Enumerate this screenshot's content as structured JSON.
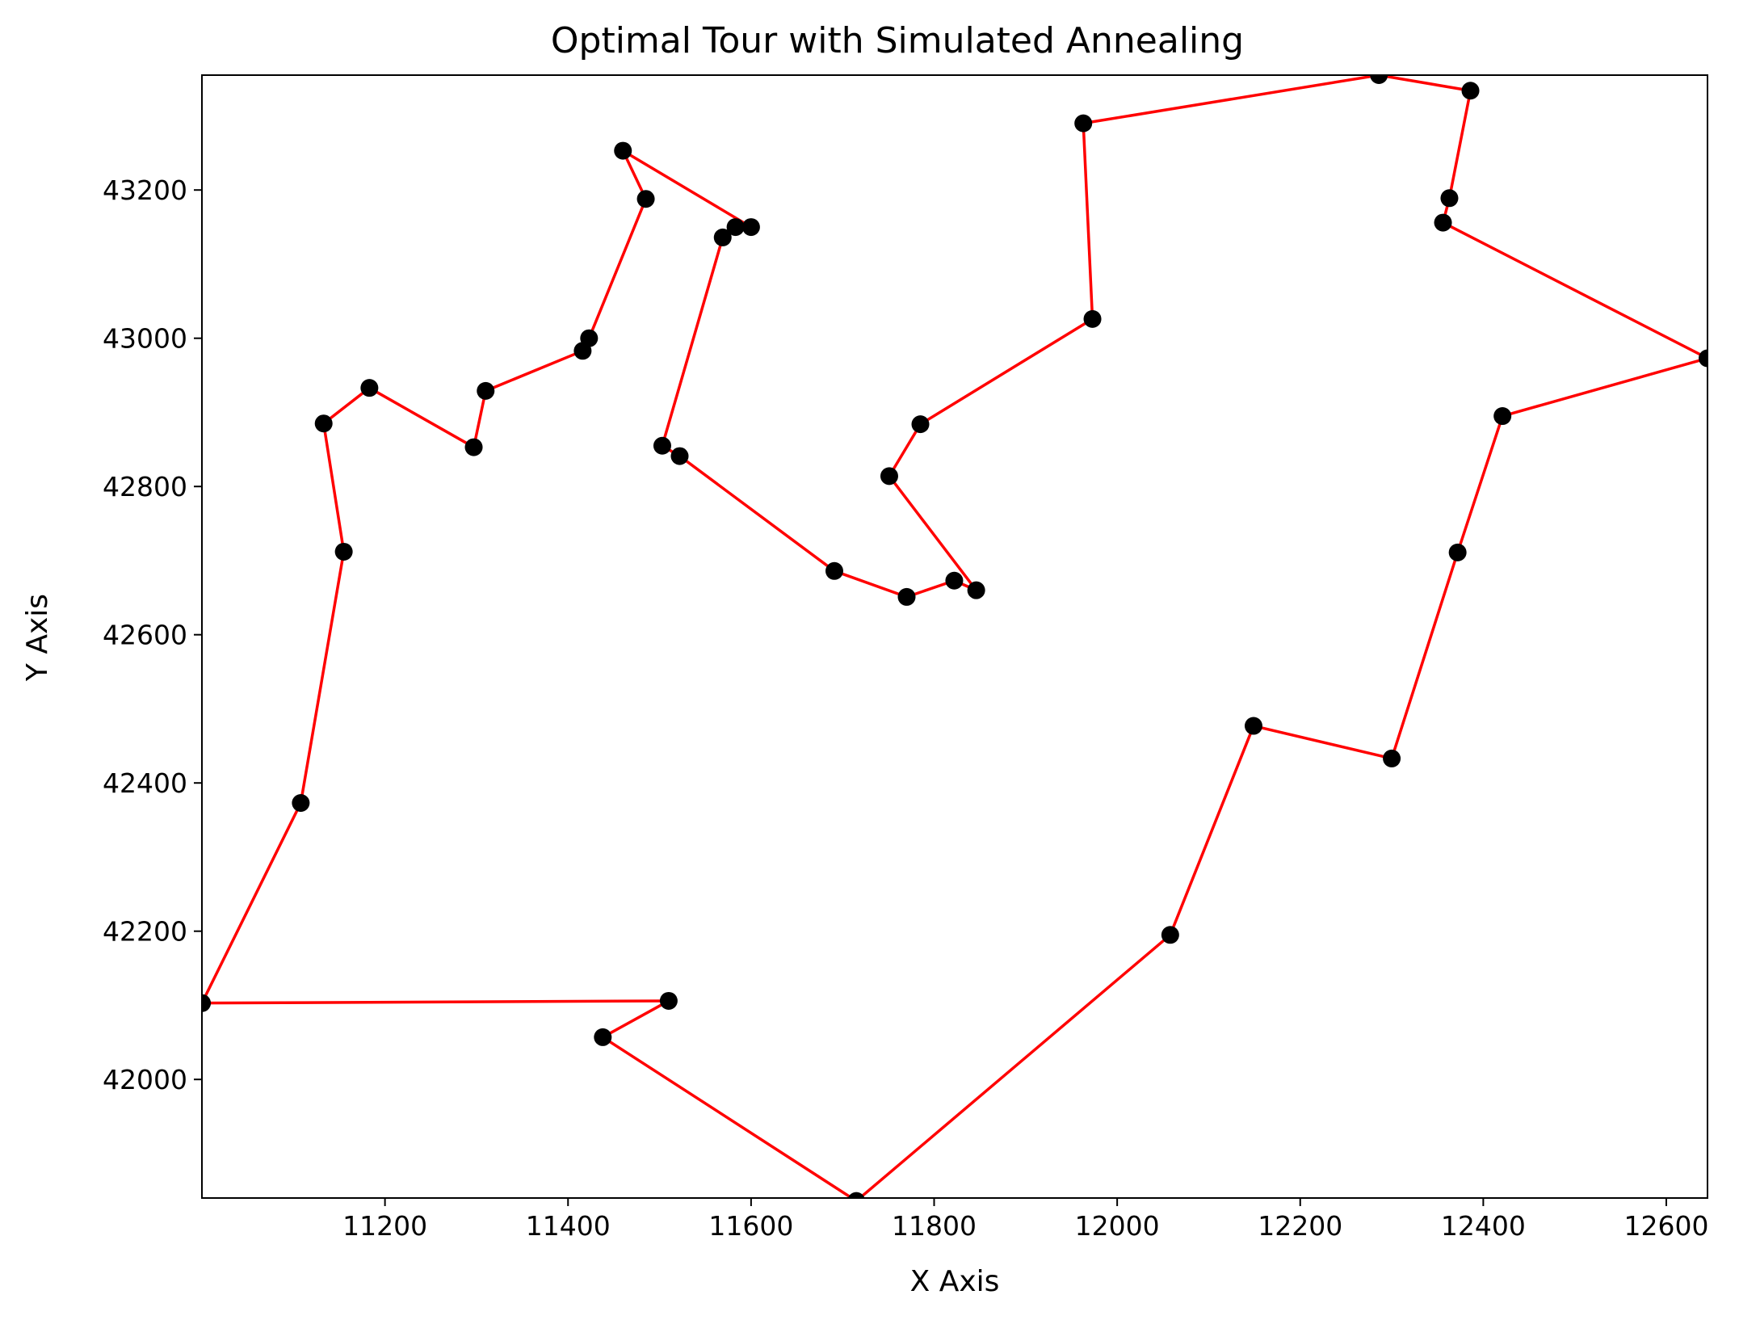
{
  "chart_data": {
    "type": "line",
    "title": "Optimal Tour with Simulated Annealing",
    "xlabel": "X Axis",
    "ylabel": "Y Axis",
    "xlim": [
      11000,
      12645
    ],
    "ylim": [
      41840,
      43355
    ],
    "xticks": [
      11200,
      11400,
      11600,
      11800,
      12000,
      12200,
      12400,
      12600
    ],
    "yticks": [
      42000,
      42200,
      42400,
      42600,
      42800,
      43000,
      43200
    ],
    "grid": false,
    "legend": "none",
    "colors": {
      "line": "#ff0000",
      "marker": "#000000",
      "axes": "#000000",
      "background": "#ffffff"
    },
    "series": [
      {
        "marker": "circle",
        "points": [
          [
            11000,
            42103
          ],
          [
            11108,
            42373
          ],
          [
            11155,
            42712
          ],
          [
            11133,
            42885
          ],
          [
            11183,
            42933
          ],
          [
            11297,
            42853
          ],
          [
            11310,
            42929
          ],
          [
            11416,
            42983
          ],
          [
            11423,
            43000
          ],
          [
            11485,
            43188
          ],
          [
            11460,
            43253
          ],
          [
            11600,
            43150
          ],
          [
            11583,
            43150
          ],
          [
            11569,
            43136
          ],
          [
            11503,
            42855
          ],
          [
            11522,
            42841
          ],
          [
            11691,
            42686
          ],
          [
            11770,
            42651
          ],
          [
            11822,
            42673
          ],
          [
            11846,
            42660
          ],
          [
            11751,
            42814
          ],
          [
            11785,
            42884
          ],
          [
            11973,
            43026
          ],
          [
            11963,
            43290
          ],
          [
            12286,
            43355
          ],
          [
            12386,
            43334
          ],
          [
            12363,
            43189
          ],
          [
            12356,
            43156
          ],
          [
            12645,
            42973
          ],
          [
            12421,
            42895
          ],
          [
            12372,
            42711
          ],
          [
            12300,
            42433
          ],
          [
            12149,
            42477
          ],
          [
            12058,
            42195
          ],
          [
            11715,
            41836
          ],
          [
            11438,
            42057
          ],
          [
            11510,
            42106
          ],
          [
            11000,
            42103
          ]
        ]
      }
    ]
  }
}
